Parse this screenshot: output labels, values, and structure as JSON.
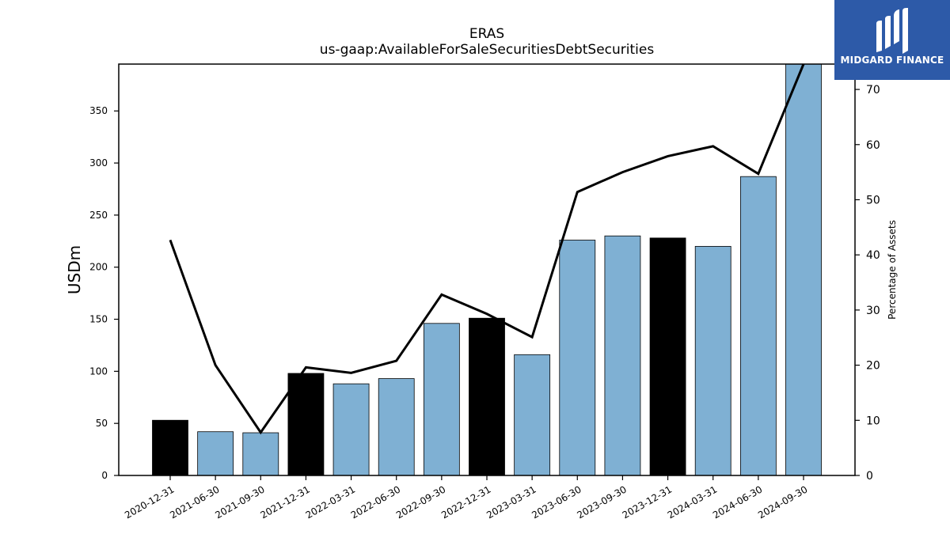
{
  "chart_data": {
    "type": "bar",
    "title": "ERAS",
    "subtitle": "us-gaap:AvailableForSaleSecuritiesDebtSecurities",
    "ylabel": "USDm",
    "ylabel_right": "Percentage of Assets",
    "categories": [
      "2020-12-31",
      "2021-06-30",
      "2021-09-30",
      "2021-12-31",
      "2022-03-31",
      "2022-06-30",
      "2022-09-30",
      "2022-12-31",
      "2023-03-31",
      "2023-06-30",
      "2023-09-30",
      "2023-12-31",
      "2024-03-31",
      "2024-06-30",
      "2024-09-30"
    ],
    "series": [
      {
        "type": "bar",
        "axis": "left",
        "values": [
          53,
          42,
          41,
          98,
          88,
          93,
          146,
          151,
          116,
          226,
          230,
          228,
          220,
          287,
          395
        ],
        "bar_colors": [
          "#000000",
          "#7fb0d3",
          "#7fb0d3",
          "#000000",
          "#7fb0d3",
          "#7fb0d3",
          "#7fb0d3",
          "#000000",
          "#7fb0d3",
          "#7fb0d3",
          "#7fb0d3",
          "#000000",
          "#7fb0d3",
          "#7fb0d3",
          "#7fb0d3"
        ]
      },
      {
        "type": "line",
        "axis": "right",
        "color": "#000000",
        "values": [
          42.7,
          20.0,
          7.8,
          19.6,
          18.6,
          20.8,
          32.8,
          29.3,
          25.1,
          51.4,
          55.0,
          57.9,
          59.7,
          54.7,
          75.5
        ]
      }
    ],
    "ylim": [
      0,
      395
    ],
    "ylim_right": [
      0,
      74.6
    ],
    "yticks": [
      0,
      50,
      100,
      150,
      200,
      250,
      300,
      350
    ],
    "yticks_right": [
      0,
      10,
      20,
      30,
      40,
      50,
      60,
      70
    ],
    "grid": false,
    "legend": "none"
  },
  "logo": {
    "text": "MIDGARD FINANCE",
    "color": "#2d5aa8"
  }
}
